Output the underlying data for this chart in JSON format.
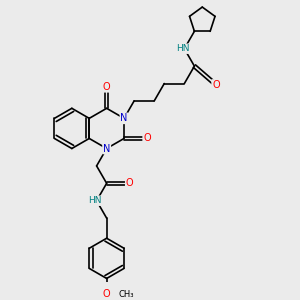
{
  "bg_color": "#ebebeb",
  "atom_colors": {
    "C": "#000000",
    "N": "#0000cc",
    "O": "#ff0000",
    "H": "#008080"
  },
  "bond_color": "#000000",
  "bond_width": 1.2,
  "figsize": [
    3.0,
    3.0
  ],
  "dpi": 100,
  "xlim": [
    0,
    10
  ],
  "ylim": [
    0,
    10
  ]
}
